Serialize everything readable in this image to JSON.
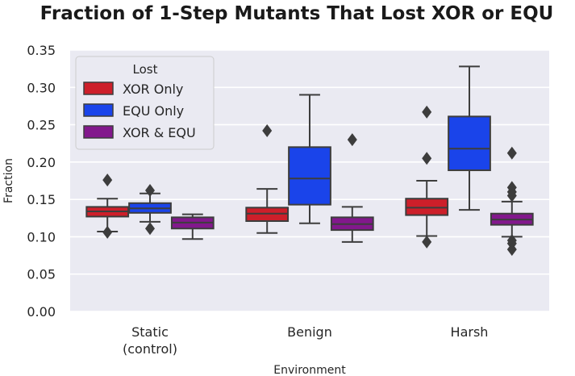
{
  "chart_data": {
    "type": "box",
    "title": "Fraction of 1-Step Mutants That Lost XOR or EQU",
    "xlabel": "Environment",
    "ylabel": "Fraction",
    "ylim": [
      0,
      0.35
    ],
    "yticks": [
      "0.00",
      "0.05",
      "0.10",
      "0.15",
      "0.20",
      "0.25",
      "0.30",
      "0.35"
    ],
    "categories": [
      {
        "lines": [
          "Static",
          "(control)"
        ]
      },
      {
        "lines": [
          "Benign"
        ]
      },
      {
        "lines": [
          "Harsh"
        ]
      }
    ],
    "grid": true,
    "legend": {
      "title": "Lost",
      "position": "top-left",
      "entries": [
        "XOR Only",
        "EQU Only",
        "XOR & EQU"
      ]
    },
    "series": [
      {
        "name": "XOR Only",
        "color": "#cd1f2a",
        "boxes": [
          {
            "whisker_low": 0.107,
            "q1": 0.127,
            "median": 0.134,
            "q3": 0.14,
            "whisker_high": 0.151,
            "outliers": [
              0.176,
              0.106
            ]
          },
          {
            "whisker_low": 0.105,
            "q1": 0.121,
            "median": 0.131,
            "q3": 0.139,
            "whisker_high": 0.164,
            "outliers": [
              0.242
            ]
          },
          {
            "whisker_low": 0.101,
            "q1": 0.129,
            "median": 0.139,
            "q3": 0.151,
            "whisker_high": 0.175,
            "outliers": [
              0.267,
              0.205,
              0.093
            ]
          }
        ]
      },
      {
        "name": "EQU Only",
        "color": "#1a44ea",
        "boxes": [
          {
            "whisker_low": 0.12,
            "q1": 0.132,
            "median": 0.138,
            "q3": 0.145,
            "whisker_high": 0.158,
            "outliers": [
              0.162,
              0.111
            ]
          },
          {
            "whisker_low": 0.118,
            "q1": 0.143,
            "median": 0.178,
            "q3": 0.22,
            "whisker_high": 0.29,
            "outliers": []
          },
          {
            "whisker_low": 0.136,
            "q1": 0.189,
            "median": 0.218,
            "q3": 0.261,
            "whisker_high": 0.328,
            "outliers": []
          }
        ]
      },
      {
        "name": "XOR & EQU",
        "color": "#82188c",
        "boxes": [
          {
            "whisker_low": 0.097,
            "q1": 0.111,
            "median": 0.119,
            "q3": 0.126,
            "whisker_high": 0.13,
            "outliers": []
          },
          {
            "whisker_low": 0.093,
            "q1": 0.109,
            "median": 0.117,
            "q3": 0.126,
            "whisker_high": 0.14,
            "outliers": [
              0.23
            ]
          },
          {
            "whisker_low": 0.1,
            "q1": 0.116,
            "median": 0.123,
            "q3": 0.131,
            "whisker_high": 0.147,
            "outliers": [
              0.212,
              0.166,
              0.16,
              0.155,
              0.095,
              0.091,
              0.083
            ]
          }
        ]
      }
    ]
  }
}
